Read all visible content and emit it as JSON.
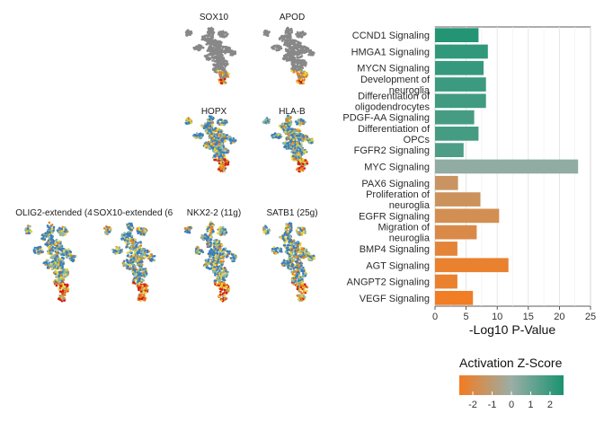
{
  "chart_data": [
    {
      "type": "scatter",
      "subtype": "umap-feature-panels",
      "palette_low_to_high": [
        "#3a7dc0",
        "#8fb89a",
        "#e9d236",
        "#e8831f",
        "#d41c14"
      ],
      "na_color": "#888888",
      "panels": [
        {
          "title": "SOX10",
          "colored": false
        },
        {
          "title": "APOD",
          "colored": false
        },
        {
          "title": "HOPX",
          "colored": true
        },
        {
          "title": "HLA-B",
          "colored": true
        },
        {
          "title": "OLIG2-extended (4",
          "colored": true
        },
        {
          "title": "SOX10-extended (6",
          "colored": true
        },
        {
          "title": "NKX2-2 (11g)",
          "colored": true
        },
        {
          "title": "SATB1 (25g)",
          "colored": true
        }
      ]
    },
    {
      "type": "bar",
      "orientation": "horizontal",
      "categories": [
        "CCND1 Signaling",
        "HMGA1 Signaling",
        "MYCN Signaling",
        "Development of neuroglia",
        "Differentiation of oligodendrocytes",
        "PDGF-AA Signaling",
        "Differentiation of OPCs",
        "FGFR2 Signaling",
        "MYC Signaling",
        "PAX6 Signaling",
        "Proliferation of neuroglia",
        "EGFR Signaling",
        "Migration of neuroglia",
        "BMP4 Signaling",
        "AGT Signaling",
        "ANGPT2 Signaling",
        "VEGF Signaling"
      ],
      "values": [
        7.0,
        8.5,
        7.8,
        8.2,
        8.2,
        6.3,
        7.0,
        4.6,
        23.0,
        3.7,
        7.3,
        10.3,
        6.7,
        3.6,
        11.8,
        3.6,
        6.1
      ],
      "zscores": [
        2.5,
        2.2,
        2.1,
        2.0,
        1.9,
        1.8,
        1.8,
        1.6,
        0.2,
        -1.4,
        -1.5,
        -1.7,
        -1.9,
        -2.2,
        -2.4,
        -2.4,
        -2.6
      ],
      "xlabel": "-Log10 P-Value",
      "xlim": [
        0,
        25
      ],
      "xticks": [
        0,
        5,
        10,
        15,
        20,
        25
      ],
      "grid": true,
      "legend": {
        "title": "Activation Z-Score",
        "placement": "bottom-right",
        "range": [
          -2.7,
          2.7
        ],
        "ticks": [
          -2,
          -1,
          0,
          1,
          2
        ],
        "tick_labels": [
          "-2",
          "-1",
          "0",
          "1",
          "2"
        ],
        "colors": [
          "#f47b20",
          "#9aaea6",
          "#1a9371"
        ]
      }
    }
  ]
}
